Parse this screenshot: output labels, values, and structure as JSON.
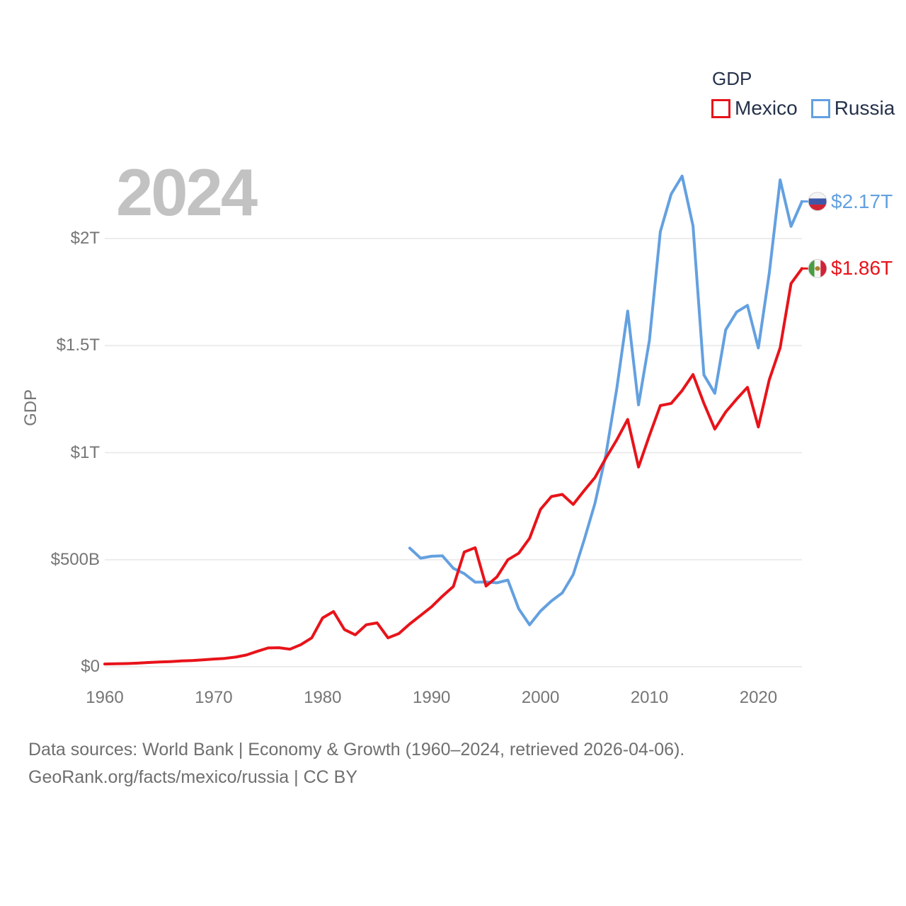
{
  "page": {
    "watermark_year": "2024",
    "footer_line1": "Data sources: World Bank | Economy & Growth (1960–2024, retrieved 2026-04-06).",
    "footer_line2": "GeoRank.org/facts/mexico/russia | CC BY"
  },
  "legend": {
    "title": "GDP",
    "items": [
      {
        "label": "Mexico",
        "color": "#e8131a"
      },
      {
        "label": "Russia",
        "color": "#63a0e0"
      }
    ]
  },
  "chart_data": {
    "type": "line",
    "title": "2024",
    "ylabel": "GDP",
    "xlabel": "",
    "unit": "billion USD",
    "grid": true,
    "legend_position": "top-right",
    "xlim": [
      1960,
      2024
    ],
    "ylim": [
      0,
      2000
    ],
    "x_ticks": [
      1960,
      1970,
      1980,
      1990,
      2000,
      2010,
      2020
    ],
    "y_ticks": [
      {
        "value": 0,
        "label": "$0"
      },
      {
        "value": 500,
        "label": "$500B"
      },
      {
        "value": 1000,
        "label": "$1T"
      },
      {
        "value": 1500,
        "label": "$1.5T"
      },
      {
        "value": 2000,
        "label": "$2T"
      }
    ],
    "series": [
      {
        "name": "Mexico",
        "color": "#e8131a",
        "flag": "mx",
        "end_label": "$1.86T",
        "start_year": 1960,
        "values": [
          13,
          14,
          15,
          17,
          20,
          22,
          24,
          27,
          29,
          32,
          36,
          39,
          45,
          55,
          72,
          88,
          89,
          82,
          103,
          135,
          228,
          258,
          174,
          149,
          196,
          205,
          135,
          155,
          200,
          240,
          280,
          330,
          375,
          536,
          556,
          377,
          420,
          500,
          530,
          600,
          735,
          795,
          805,
          758,
          822,
          884,
          975,
          1060,
          1155,
          933,
          1080,
          1220,
          1230,
          1290,
          1365,
          1230,
          1110,
          1190,
          1250,
          1305,
          1120,
          1340,
          1490,
          1790,
          1860
        ]
      },
      {
        "name": "Russia",
        "color": "#63a0e0",
        "flag": "ru",
        "end_label": "$2.17T",
        "start_year": 1988,
        "values": [
          554,
          507,
          516,
          518,
          460,
          435,
          395,
          396,
          392,
          405,
          271,
          196,
          260,
          307,
          345,
          430,
          591,
          764,
          990,
          1300,
          1661,
          1223,
          1525,
          2032,
          2208,
          2292,
          2059,
          1363,
          1277,
          1574,
          1657,
          1688,
          1489,
          1837,
          2274,
          2057,
          2173
        ]
      }
    ],
    "flag_colors": {
      "ru": {
        "top": "#f5f5f5",
        "mid": "#3d58a7",
        "bottom": "#d02433"
      },
      "mx": {
        "left": "#4a9c44",
        "mid": "#f5f5f5",
        "right": "#cf2337",
        "emblem": "#a9822f"
      }
    }
  }
}
